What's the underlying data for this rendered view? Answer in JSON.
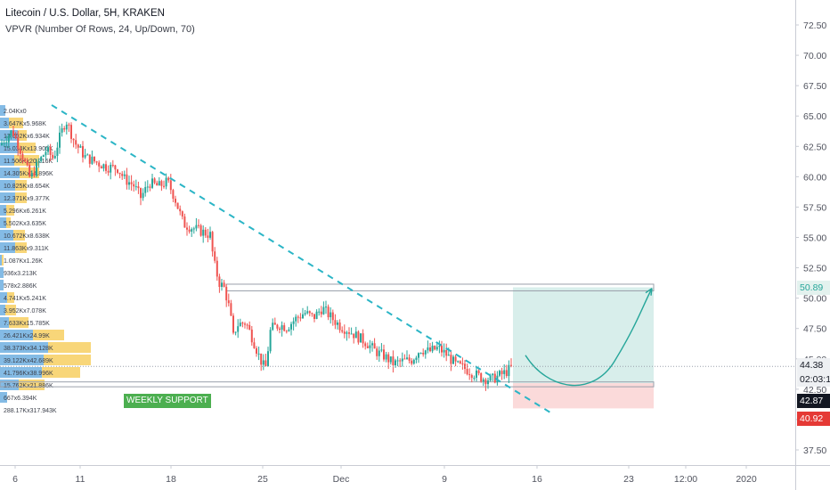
{
  "header": {
    "title": "Litecoin / U.S. Dollar, 5H, KRAKEN",
    "indicator": "VPVR (Number Of Rows, 24, Up/Down, 70)"
  },
  "price_axis": {
    "ticks": [
      72.5,
      70.0,
      67.5,
      65.0,
      62.5,
      60.0,
      57.5,
      55.0,
      52.5,
      50.0,
      47.5,
      45.0,
      42.5,
      40.0,
      37.5
    ],
    "tick_labels": [
      "72.50",
      "70.00",
      "67.50",
      "65.00",
      "62.50",
      "60.00",
      "57.50",
      "55.00",
      "52.50",
      "50.00",
      "47.50",
      "45.00",
      "42.50",
      "40.00",
      "37.50"
    ],
    "target_tag": "50.89",
    "last_price_tag": "44.38",
    "countdown_tag": "02:03:17",
    "support_tag": "42.87",
    "stop_tag": "40.92"
  },
  "time_axis": {
    "labels": [
      "6",
      "11",
      "18",
      "25",
      "Dec",
      "9",
      "16",
      "23",
      "12:00",
      "2020"
    ]
  },
  "annotations": {
    "weekly_support": "WEEKLY SUPPORT"
  },
  "colors": {
    "up": "#26a69a",
    "down": "#ef5350",
    "trendline": "#2bb5c6",
    "target_zone": "#d1ebe7",
    "stop_zone": "#fad4d4",
    "vp_up": "#5ba4dc",
    "vp_down": "#f6c84c",
    "axis_text": "#50535e",
    "target_tag_bg": "#e3f2ee",
    "target_tag_fg": "#26a69a",
    "last_tag_bg": "#eef0f3",
    "support_tag_bg": "#131722",
    "stop_tag_bg": "#e53935",
    "support_label_bg": "#4caf50"
  },
  "chart_data": {
    "type": "candlestick",
    "title": "Litecoin / U.S. Dollar, 5H, KRAKEN",
    "ylim": [
      35.5,
      74.2
    ],
    "y_scale": "linear",
    "grid": false,
    "x_axis_labels": [
      "6",
      "11",
      "18",
      "25",
      "Dec",
      "9",
      "16",
      "23",
      "12:00",
      "2020"
    ],
    "price_path": [
      [
        0,
        62.6
      ],
      [
        14,
        63.8
      ],
      [
        24,
        62.0
      ],
      [
        34,
        59.8
      ],
      [
        42,
        61.0
      ],
      [
        52,
        62.2
      ],
      [
        60,
        61.5
      ],
      [
        66,
        63.0
      ],
      [
        74,
        64.7
      ],
      [
        84,
        62.8
      ],
      [
        96,
        61.6
      ],
      [
        108,
        61.2
      ],
      [
        120,
        60.8
      ],
      [
        132,
        60.7
      ],
      [
        140,
        59.8
      ],
      [
        150,
        59.3
      ],
      [
        158,
        58.3
      ],
      [
        168,
        59.5
      ],
      [
        178,
        59.2
      ],
      [
        188,
        59.6
      ],
      [
        196,
        58.3
      ],
      [
        206,
        56.1
      ],
      [
        216,
        55.8
      ],
      [
        226,
        55.5
      ],
      [
        236,
        55.2
      ],
      [
        240,
        53.0
      ],
      [
        246,
        51.3
      ],
      [
        252,
        50.8
      ],
      [
        258,
        49.0
      ],
      [
        262,
        46.8
      ],
      [
        266,
        47.8
      ],
      [
        276,
        48.0
      ],
      [
        284,
        46.6
      ],
      [
        292,
        45.0
      ],
      [
        298,
        44.1
      ],
      [
        304,
        47.5
      ],
      [
        314,
        47.8
      ],
      [
        322,
        47.6
      ],
      [
        332,
        48.3
      ],
      [
        342,
        48.8
      ],
      [
        352,
        48.4
      ],
      [
        362,
        49.2
      ],
      [
        372,
        48.4
      ],
      [
        382,
        47.7
      ],
      [
        392,
        47.3
      ],
      [
        402,
        46.8
      ],
      [
        412,
        46.3
      ],
      [
        422,
        45.6
      ],
      [
        432,
        45.2
      ],
      [
        442,
        44.6
      ],
      [
        452,
        44.8
      ],
      [
        462,
        44.9
      ],
      [
        472,
        45.8
      ],
      [
        482,
        45.6
      ],
      [
        492,
        45.9
      ],
      [
        502,
        45.3
      ],
      [
        512,
        44.5
      ],
      [
        522,
        44.2
      ],
      [
        532,
        43.8
      ],
      [
        542,
        43.4
      ],
      [
        552,
        43.3
      ],
      [
        560,
        43.6
      ],
      [
        568,
        43.9
      ],
      [
        576,
        44.38
      ]
    ],
    "volume_profile": {
      "labels": [
        "2.04Kx0",
        "3.647Kx5.968K",
        "13.002Kx6.934K",
        "15.034Kx13.905K",
        "11.506Kx20.216K",
        "14.305Kx14.896K",
        "10.825Kx8.654K",
        "12.371Kx9.377K",
        "5.296Kx6.261K",
        "5.502Kx3.635K",
        "10.672Kx8.638K",
        "11.863Kx9.311K",
        "1.087Kx1.26K",
        "936x3.213K",
        "578x2.886K",
        "4.741Kx5.241K",
        "3.952Kx7.078K",
        "7.633Kx15.785K",
        "26.421Kx24.99K",
        "38.373Kx34.128K",
        "39.122Kx42.689K",
        "41.796Kx38.996K",
        "15.762Kx21.886K",
        "667x6.394K",
        "288.17Kx317.943K"
      ],
      "row_price": [
        64.75,
        64.2,
        63.65,
        63.1,
        62.55,
        62.0,
        61.45,
        60.9,
        60.35,
        59.8,
        59.25,
        58.7,
        58.15,
        57.6,
        57.05,
        56.5,
        55.95,
        55.4,
        54.85,
        54.3,
        53.75,
        53.2,
        52.65,
        52.1,
        51.55
      ]
    },
    "trendline": {
      "from": [
        58,
        65.9
      ],
      "to": [
        622,
        40.4
      ]
    },
    "weekly_support_zone": [
      42.7,
      43.1
    ],
    "target_zone_top": [
      50.6,
      51.15
    ],
    "projection": {
      "target": 50.89,
      "entry": 43.0,
      "stop": 40.92
    }
  }
}
